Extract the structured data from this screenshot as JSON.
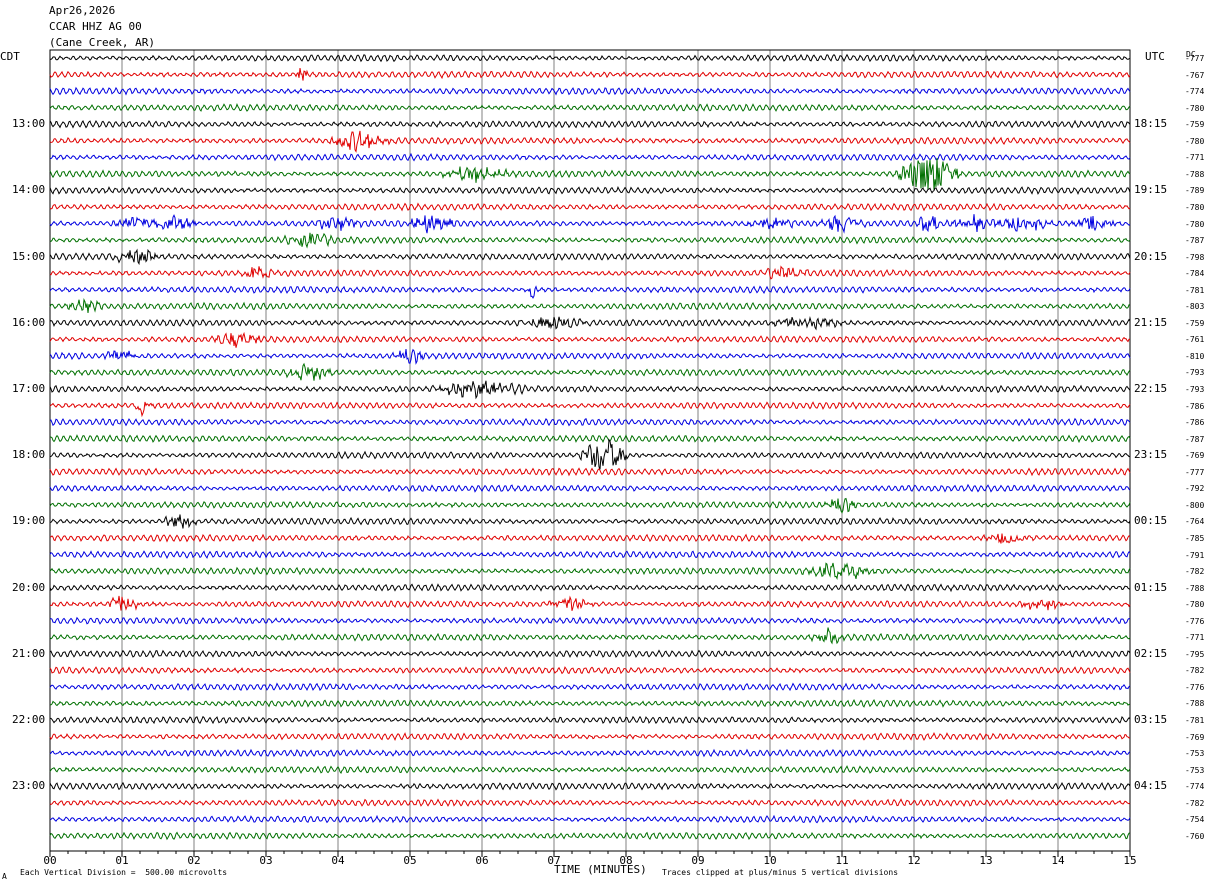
{
  "header": {
    "date": "Apr26,2026",
    "station": "CCAR HHZ AG 00",
    "location": "(Cane Creek, AR)"
  },
  "left_axis_title": "CDT",
  "right_axis_title": "UTC",
  "dc_title": "DC",
  "footer": {
    "scale_note": "Each Vertical Division =  500.00 microvolts",
    "xlabel": "TIME (MINUTES)",
    "clip_note": "Traces clipped at plus/minus 5 vertical divisions",
    "corner_mark": "A"
  },
  "colors": {
    "cycle": [
      "#000000",
      "#e00000",
      "#0000e0",
      "#007000"
    ],
    "grid": "#808080"
  },
  "chart_data": {
    "type": "line",
    "subtype": "helicorder",
    "xlabel": "TIME (MINUTES)",
    "xlim": [
      0,
      15
    ],
    "x_ticks": [
      "00",
      "01",
      "02",
      "03",
      "04",
      "05",
      "06",
      "07",
      "08",
      "09",
      "10",
      "11",
      "12",
      "13",
      "14",
      "15"
    ],
    "trace_count": 48,
    "minutes_per_trace": 15,
    "left_hour_labels": [
      "13:00",
      "14:00",
      "15:00",
      "16:00",
      "17:00",
      "18:00",
      "19:00",
      "20:00",
      "21:00",
      "22:00",
      "23:00"
    ],
    "right_hour_labels": [
      "18:15",
      "19:15",
      "20:15",
      "21:15",
      "22:15",
      "23:15",
      "00:15",
      "01:15",
      "02:15",
      "03:15",
      "04:15"
    ],
    "dc_offsets": [
      -777,
      -767,
      -774,
      -780,
      -759,
      -780,
      -771,
      -788,
      -789,
      -780,
      -780,
      -787,
      -798,
      -784,
      -781,
      -803,
      -759,
      -761,
      -810,
      -793,
      -793,
      -786,
      -786,
      -787,
      -769,
      -777,
      -792,
      -800,
      -764,
      -785,
      -791,
      -782,
      -788,
      -780,
      -776,
      -771,
      -795,
      -782,
      -776,
      -788,
      -781,
      -769,
      -753,
      -753,
      -774,
      -782,
      -754,
      -760
    ],
    "events": [
      {
        "trace": 1,
        "minute": 3.5,
        "amp": 1.4,
        "dur": 0.1
      },
      {
        "trace": 5,
        "minute": 4.3,
        "amp": 1.6,
        "dur": 0.5
      },
      {
        "trace": 7,
        "minute": 5.9,
        "amp": 1.2,
        "dur": 0.6
      },
      {
        "trace": 7,
        "minute": 12.2,
        "amp": 4.0,
        "dur": 0.5
      },
      {
        "trace": 10,
        "minute": 12.2,
        "amp": 1.6,
        "dur": 0.2
      },
      {
        "trace": 10,
        "minute": 13.5,
        "amp": 1.2,
        "dur": 0.6
      },
      {
        "trace": 10,
        "minute": 1.2,
        "amp": 1.2,
        "dur": 0.4
      },
      {
        "trace": 10,
        "minute": 1.7,
        "amp": 1.2,
        "dur": 0.4
      },
      {
        "trace": 10,
        "minute": 11.0,
        "amp": 1.2,
        "dur": 0.4
      },
      {
        "trace": 10,
        "minute": 14.5,
        "amp": 1.2,
        "dur": 0.4
      },
      {
        "trace": 10,
        "minute": 4.0,
        "amp": 1.2,
        "dur": 0.4
      },
      {
        "trace": 10,
        "minute": 10.0,
        "amp": 1.2,
        "dur": 0.4
      },
      {
        "trace": 10,
        "minute": 12.8,
        "amp": 1.2,
        "dur": 0.4
      },
      {
        "trace": 11,
        "minute": 3.6,
        "amp": 1.2,
        "dur": 0.4
      },
      {
        "trace": 12,
        "minute": 1.2,
        "amp": 1.2,
        "dur": 0.4
      },
      {
        "trace": 13,
        "minute": 10.2,
        "amp": 1.2,
        "dur": 0.4
      },
      {
        "trace": 10,
        "minute": 5.3,
        "amp": 1.6,
        "dur": 0.4
      },
      {
        "trace": 13,
        "minute": 2.9,
        "amp": 1.2,
        "dur": 0.3
      },
      {
        "trace": 14,
        "minute": 6.7,
        "amp": 1.5,
        "dur": 0.1
      },
      {
        "trace": 15,
        "minute": 0.5,
        "amp": 1.2,
        "dur": 0.3
      },
      {
        "trace": 16,
        "minute": 7.0,
        "amp": 1.1,
        "dur": 0.6
      },
      {
        "trace": 16,
        "minute": 10.5,
        "amp": 1.1,
        "dur": 0.6
      },
      {
        "trace": 17,
        "minute": 2.6,
        "amp": 1.3,
        "dur": 0.4
      },
      {
        "trace": 18,
        "minute": 1.0,
        "amp": 1.1,
        "dur": 0.3
      },
      {
        "trace": 18,
        "minute": 5.0,
        "amp": 1.1,
        "dur": 0.3
      },
      {
        "trace": 19,
        "minute": 3.6,
        "amp": 1.4,
        "dur": 0.4
      },
      {
        "trace": 20,
        "minute": 6.0,
        "amp": 1.3,
        "dur": 0.8
      },
      {
        "trace": 21,
        "minute": 1.3,
        "amp": 1.5,
        "dur": 0.15
      },
      {
        "trace": 24,
        "minute": 7.7,
        "amp": 3.2,
        "dur": 0.4
      },
      {
        "trace": 27,
        "minute": 11.0,
        "amp": 1.2,
        "dur": 0.3
      },
      {
        "trace": 28,
        "minute": 1.8,
        "amp": 1.2,
        "dur": 0.3
      },
      {
        "trace": 29,
        "minute": 13.3,
        "amp": 1.1,
        "dur": 0.4
      },
      {
        "trace": 31,
        "minute": 11.0,
        "amp": 1.4,
        "dur": 0.6
      },
      {
        "trace": 33,
        "minute": 1.0,
        "amp": 1.5,
        "dur": 0.3
      },
      {
        "trace": 33,
        "minute": 7.2,
        "amp": 1.2,
        "dur": 0.4
      },
      {
        "trace": 33,
        "minute": 13.8,
        "amp": 1.2,
        "dur": 0.4
      },
      {
        "trace": 35,
        "minute": 10.8,
        "amp": 1.2,
        "dur": 0.3
      }
    ]
  }
}
